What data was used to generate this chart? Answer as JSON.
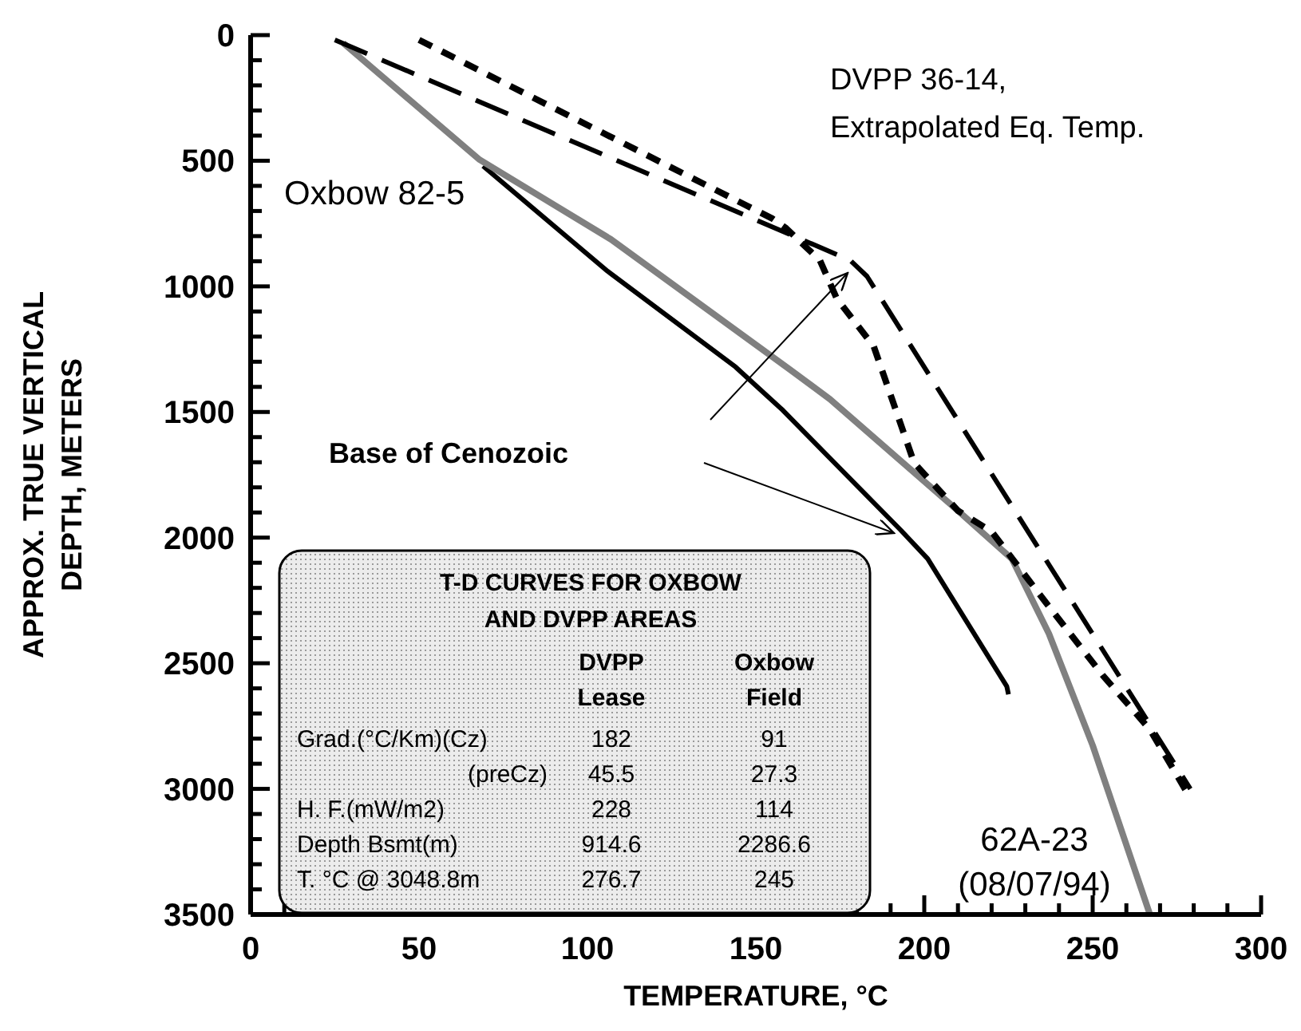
{
  "chart_data": {
    "type": "line",
    "xlabel": "TEMPERATURE, °C",
    "ylabel": "APPROX. TRUE VERTICAL DEPTH, METERS",
    "xlim": [
      0,
      300
    ],
    "xticks": [
      0,
      {
        "value": 10,
        "label": null
      },
      {
        "value": 20,
        "label": null
      },
      {
        "value": 30,
        "label": null
      },
      {
        "value": 40,
        "label": null
      },
      50,
      {
        "value": 60,
        "label": null
      },
      {
        "value": 70,
        "label": null
      },
      {
        "value": 80,
        "label": null
      },
      {
        "value": 90,
        "label": null
      },
      100,
      {
        "value": 110,
        "label": null
      },
      {
        "value": 120,
        "label": null
      },
      {
        "value": 130,
        "label": null
      },
      {
        "value": 140,
        "label": null
      },
      150,
      {
        "value": 160,
        "label": null
      },
      {
        "value": 170,
        "label": null
      },
      {
        "value": 180,
        "label": null
      },
      {
        "value": 190,
        "label": null
      },
      200,
      {
        "value": 210,
        "label": null
      },
      {
        "value": 220,
        "label": null
      },
      {
        "value": 230,
        "label": null
      },
      {
        "value": 240,
        "label": null
      },
      250,
      {
        "value": 260,
        "label": null
      },
      {
        "value": 270,
        "label": null
      },
      {
        "value": 280,
        "label": null
      },
      {
        "value": 290,
        "label": null
      },
      300
    ],
    "ylim": [
      3500,
      0
    ],
    "yticks": [
      0,
      {
        "value": 100,
        "label": null
      },
      {
        "value": 200,
        "label": null
      },
      {
        "value": 300,
        "label": null
      },
      {
        "value": 400,
        "label": null
      },
      500,
      {
        "value": 600,
        "label": null
      },
      {
        "value": 700,
        "label": null
      },
      {
        "value": 800,
        "label": null
      },
      {
        "value": 900,
        "label": null
      },
      1000,
      {
        "value": 1100,
        "label": null
      },
      {
        "value": 1200,
        "label": null
      },
      {
        "value": 1300,
        "label": null
      },
      {
        "value": 1400,
        "label": null
      },
      1500,
      {
        "value": 1600,
        "label": null
      },
      {
        "value": 1700,
        "label": null
      },
      {
        "value": 1800,
        "label": null
      },
      {
        "value": 1900,
        "label": null
      },
      2000,
      {
        "value": 2100,
        "label": null
      },
      {
        "value": 2200,
        "label": null
      },
      {
        "value": 2300,
        "label": null
      },
      {
        "value": 2400,
        "label": null
      },
      2500,
      {
        "value": 2600,
        "label": null
      },
      {
        "value": 2700,
        "label": null
      },
      {
        "value": 2800,
        "label": null
      },
      {
        "value": 2900,
        "label": null
      },
      3000,
      {
        "value": 3100,
        "label": null
      },
      {
        "value": 3200,
        "label": null
      },
      {
        "value": 3300,
        "label": null
      },
      {
        "value": 3400,
        "label": null
      },
      3500
    ],
    "marker": "none",
    "series": [
      {
        "name": "Oxbow 82-5",
        "color": "#000000",
        "line_style": "solid",
        "x": [
          69,
          106,
          144,
          158,
          193,
          201,
          224.5,
          225
        ],
        "values": [
          521,
          940,
          1321,
          1493,
          1970,
          2084,
          2592,
          2624
        ]
      },
      {
        "name": "62A-23 (08/07/94)",
        "color": "#808080",
        "line_style": "solid",
        "x": [
          27.5,
          68,
          107,
          160,
          172,
          210,
          226,
          237,
          250,
          267
        ],
        "values": [
          32,
          496,
          813,
          1330,
          1449,
          1893,
          2084,
          2382,
          2827,
          3500
        ]
      },
      {
        "color": "#000000",
        "line_style": "dashed",
        "x": [
          50,
          155,
          159,
          169,
          174,
          185,
          197,
          210,
          220,
          237,
          253,
          267,
          279
        ],
        "values": [
          19,
          731,
          769,
          896,
          1048,
          1239,
          1703,
          1893,
          1976,
          2274,
          2548,
          2764,
          3037
        ]
      },
      {
        "color": "#000000",
        "line_style": "dashed",
        "x": [
          25,
          178,
          183,
          279
        ],
        "values": [
          19,
          896,
          960,
          3000
        ]
      }
    ],
    "annotations": [
      "Base of Cenozoic",
      "DVPP 36-14, Extrapolated Eq. Temp.",
      "T-D CURVES FOR OXBOW AND DVPP AREAS",
      "DVPP Lease",
      "Oxbow Field",
      "Grad.(°C/Km)(Cz)",
      "182",
      "91",
      "(preCz)",
      "45.5",
      "27.3",
      "H. F.(mW/m2)",
      "228",
      "114",
      "Depth Bsmt(m)",
      "914.6",
      "2286.6",
      "T. °C @ 3048.8m",
      "276.7",
      "245"
    ]
  }
}
